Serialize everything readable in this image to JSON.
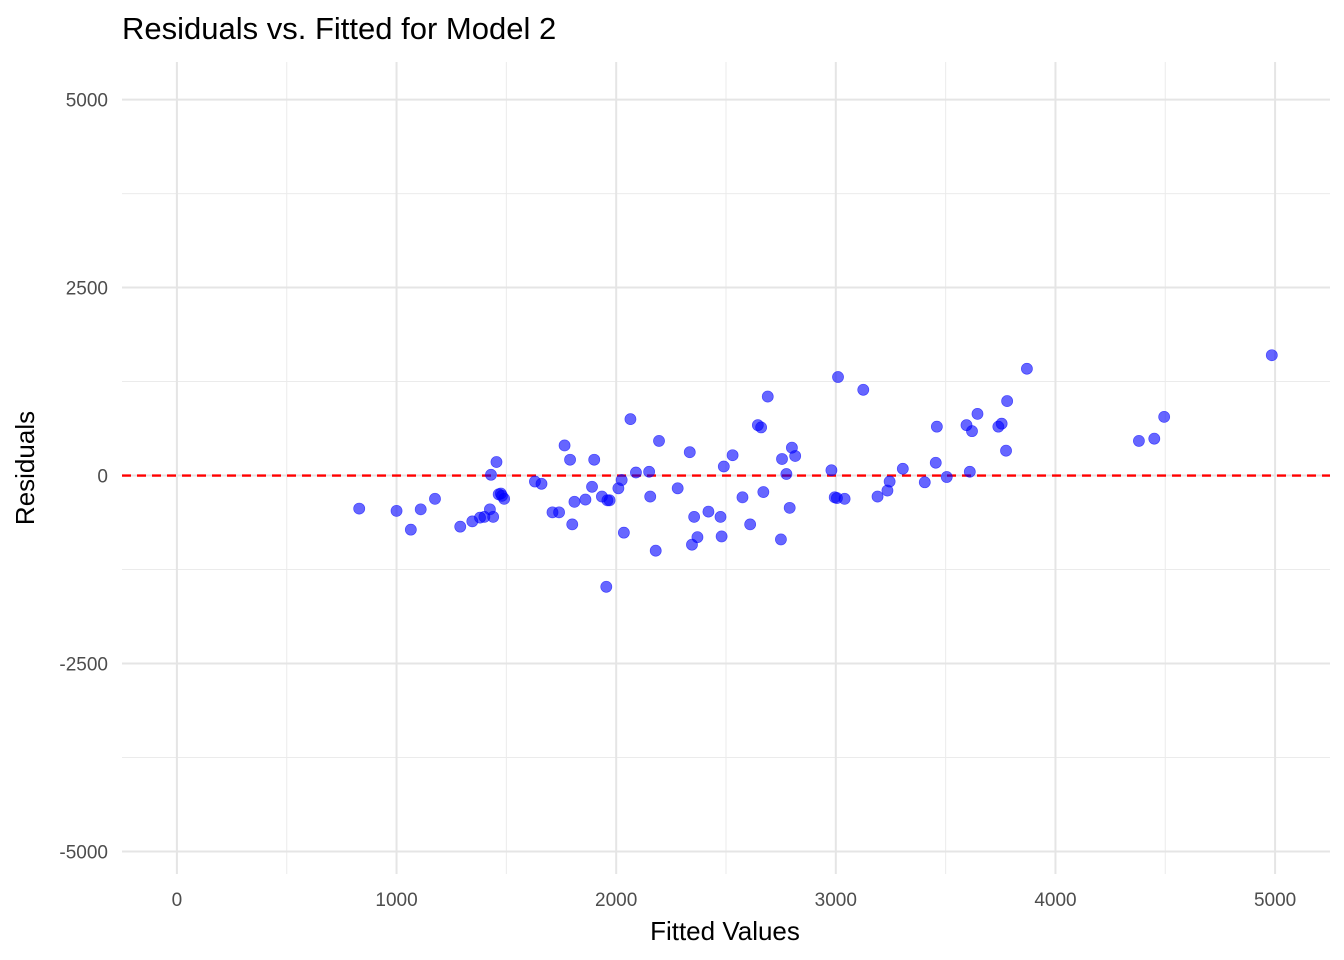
{
  "chart_data": {
    "type": "scatter",
    "title": "Residuals vs. Fitted for Model 2",
    "xlabel": "Fitted Values",
    "ylabel": "Residuals",
    "xlim": [
      -250,
      5250
    ],
    "ylim": [
      -5300,
      5500
    ],
    "x_ticks": [
      0,
      1000,
      2000,
      3000,
      4000,
      5000
    ],
    "x_tick_labels": [
      "0",
      "1000",
      "2000",
      "3000",
      "4000",
      "5000"
    ],
    "y_ticks": [
      -5000,
      -2500,
      0,
      2500,
      5000
    ],
    "y_tick_labels": [
      "-5000",
      "-2500",
      "0",
      "2500",
      "5000"
    ],
    "grid": true,
    "reference_line": {
      "y": 0,
      "style": "dashed",
      "color": "#ff0000"
    },
    "point_color": "#0000ff",
    "point_opacity": 0.6,
    "points": [
      [
        830,
        -440
      ],
      [
        1000,
        -470
      ],
      [
        1065,
        -720
      ],
      [
        1110,
        -450
      ],
      [
        1175,
        -310
      ],
      [
        1290,
        -680
      ],
      [
        1345,
        -610
      ],
      [
        1380,
        -560
      ],
      [
        1400,
        -550
      ],
      [
        1425,
        -450
      ],
      [
        1430,
        10
      ],
      [
        1440,
        -550
      ],
      [
        1455,
        180
      ],
      [
        1465,
        -250
      ],
      [
        1475,
        -240
      ],
      [
        1480,
        -270
      ],
      [
        1490,
        -310
      ],
      [
        1630,
        -80
      ],
      [
        1660,
        -110
      ],
      [
        1710,
        -490
      ],
      [
        1740,
        -490
      ],
      [
        1765,
        400
      ],
      [
        1790,
        210
      ],
      [
        1800,
        -650
      ],
      [
        1810,
        -350
      ],
      [
        1860,
        -320
      ],
      [
        1890,
        -150
      ],
      [
        1900,
        210
      ],
      [
        1935,
        -280
      ],
      [
        1955,
        -1480
      ],
      [
        1960,
        -330
      ],
      [
        1970,
        -330
      ],
      [
        2010,
        -170
      ],
      [
        2025,
        -60
      ],
      [
        2035,
        -760
      ],
      [
        2065,
        750
      ],
      [
        2090,
        40
      ],
      [
        2150,
        50
      ],
      [
        2155,
        -280
      ],
      [
        2180,
        -1000
      ],
      [
        2195,
        460
      ],
      [
        2280,
        -170
      ],
      [
        2335,
        310
      ],
      [
        2345,
        -920
      ],
      [
        2355,
        -550
      ],
      [
        2370,
        -820
      ],
      [
        2420,
        -480
      ],
      [
        2475,
        -550
      ],
      [
        2480,
        -810
      ],
      [
        2490,
        120
      ],
      [
        2530,
        270
      ],
      [
        2575,
        -290
      ],
      [
        2610,
        -650
      ],
      [
        2645,
        670
      ],
      [
        2660,
        640
      ],
      [
        2670,
        -220
      ],
      [
        2690,
        1050
      ],
      [
        2750,
        -850
      ],
      [
        2755,
        220
      ],
      [
        2775,
        20
      ],
      [
        2790,
        -430
      ],
      [
        2800,
        370
      ],
      [
        2815,
        260
      ],
      [
        2980,
        70
      ],
      [
        2995,
        -290
      ],
      [
        3005,
        -300
      ],
      [
        3010,
        1310
      ],
      [
        3040,
        -310
      ],
      [
        3125,
        1140
      ],
      [
        3190,
        -280
      ],
      [
        3235,
        -200
      ],
      [
        3245,
        -80
      ],
      [
        3305,
        90
      ],
      [
        3405,
        -90
      ],
      [
        3455,
        170
      ],
      [
        3460,
        650
      ],
      [
        3505,
        -20
      ],
      [
        3595,
        670
      ],
      [
        3610,
        50
      ],
      [
        3620,
        590
      ],
      [
        3645,
        820
      ],
      [
        3740,
        650
      ],
      [
        3755,
        690
      ],
      [
        3775,
        330
      ],
      [
        3780,
        990
      ],
      [
        3870,
        1420
      ],
      [
        4380,
        460
      ],
      [
        4450,
        490
      ],
      [
        4495,
        780
      ],
      [
        4985,
        1600
      ]
    ]
  }
}
